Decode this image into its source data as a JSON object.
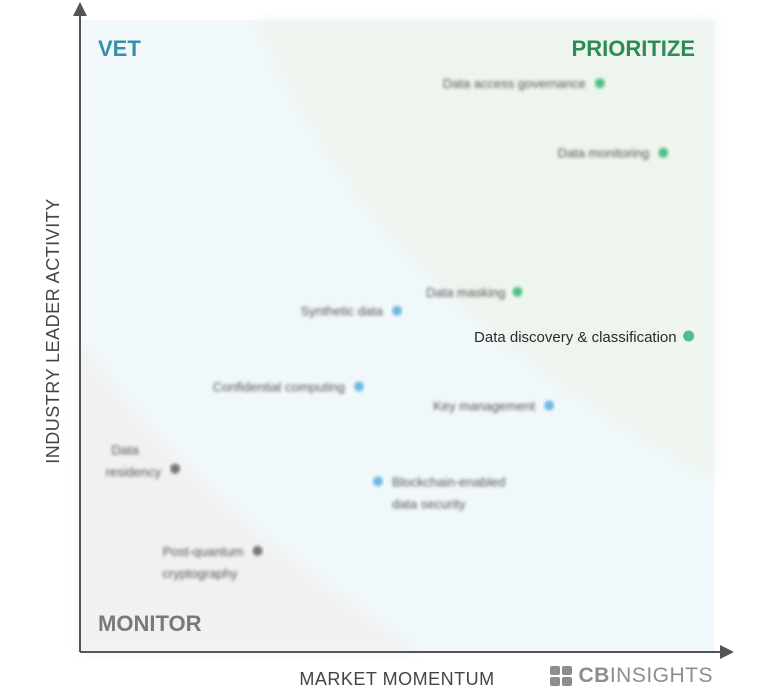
{
  "chart_data": {
    "type": "scatter",
    "title": "",
    "xlabel": "MARKET MOMENTUM",
    "ylabel": "INDUSTRY LEADER ACTIVITY",
    "xlim": [
      0,
      100
    ],
    "ylim": [
      0,
      100
    ],
    "grid": false,
    "quadrants": [
      {
        "name": "VET",
        "color": "#3a8fa8",
        "position": "top-left"
      },
      {
        "name": "PRIORITIZE",
        "color": "#2e8b57",
        "position": "top-right"
      },
      {
        "name": "MONITOR",
        "color": "#7a7a7a",
        "position": "bottom-left"
      }
    ],
    "points": [
      {
        "label": "Data access governance",
        "x": 82,
        "y": 90,
        "quadrant": "PRIORITIZE"
      },
      {
        "label": "Data monitoring",
        "x": 92,
        "y": 79,
        "quadrant": "PRIORITIZE"
      },
      {
        "label": "Data masking",
        "x": 69,
        "y": 57,
        "quadrant": "PRIORITIZE"
      },
      {
        "label": "Data discovery & classification",
        "x": 96,
        "y": 50,
        "quadrant": "PRIORITIZE",
        "highlighted": true
      },
      {
        "label": "Synthetic data",
        "x": 50,
        "y": 54,
        "quadrant": "VET"
      },
      {
        "label": "Confidential computing",
        "x": 44,
        "y": 42,
        "quadrant": "VET"
      },
      {
        "label": "Key management",
        "x": 74,
        "y": 39,
        "quadrant": "VET"
      },
      {
        "label": "Blockchain-enabled data security",
        "x": 47,
        "y": 27,
        "quadrant": "VET"
      },
      {
        "label": "Data residency",
        "x": 15,
        "y": 29,
        "quadrant": "MONITOR"
      },
      {
        "label": "Post-quantum cryptography",
        "x": 28,
        "y": 16,
        "quadrant": "MONITOR"
      }
    ]
  },
  "colors": {
    "prioritize": "#4fbf86",
    "vet": "#6cb8e0",
    "monitor": "#777777",
    "prioritize_bg": "#eef5ef",
    "vet_bg": "#f1f8fb",
    "monitor_bg": "#f1f1f1"
  },
  "brand": {
    "bold": "CB",
    "light": "INSIGHTS"
  }
}
